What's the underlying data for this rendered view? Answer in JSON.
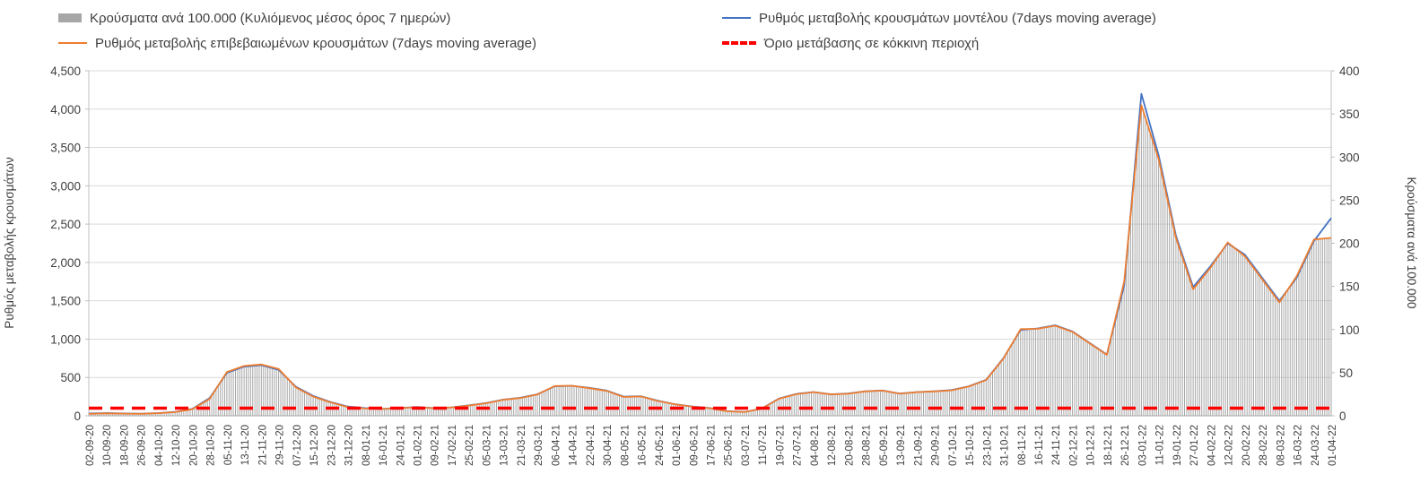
{
  "legend": {
    "items": [
      {
        "key": "cases",
        "type": "bar",
        "color": "#a6a6a6",
        "label": "Κρούσματα ανά 100.000 (Κυλιόμενος μέσος όρος 7 ημερών)"
      },
      {
        "key": "model",
        "type": "line",
        "color": "#4472c4",
        "label": "Ρυθμός μεταβολής κρουσμάτων μοντέλου (7days moving average)"
      },
      {
        "key": "confirmed",
        "type": "line",
        "color": "#ed7d31",
        "label": "Ρυθμός μεταβολής επιβεβαιωμένων κρουσμάτων (7days moving average)"
      },
      {
        "key": "threshold",
        "type": "threshold",
        "color": "#ff0000",
        "label": "Όριο μετάβασης σε κόκκινη περιοχή"
      }
    ]
  },
  "chart_data": {
    "type": "combo-bar-line",
    "grid": true,
    "legend_position": "top",
    "left_axis": {
      "label": "Ρυθμός μεταβολής κρουσμάτων",
      "min": 0,
      "max": 4500,
      "step": 500
    },
    "right_axis": {
      "label": "Κρούσματα ανά 100.000",
      "min": 0,
      "max": 400,
      "step": 50
    },
    "x": [
      "02-09-20",
      "10-09-20",
      "18-09-20",
      "26-09-20",
      "04-10-20",
      "12-10-20",
      "20-10-20",
      "28-10-20",
      "05-11-20",
      "13-11-20",
      "21-11-20",
      "29-11-20",
      "07-12-20",
      "15-12-20",
      "23-12-20",
      "31-12-20",
      "08-01-21",
      "16-01-21",
      "24-01-21",
      "01-02-21",
      "09-02-21",
      "17-02-21",
      "25-02-21",
      "05-03-21",
      "13-03-21",
      "21-03-21",
      "29-03-21",
      "06-04-21",
      "14-04-21",
      "22-04-21",
      "30-04-21",
      "08-05-21",
      "16-05-21",
      "24-05-21",
      "01-06-21",
      "09-06-21",
      "17-06-21",
      "25-06-21",
      "03-07-21",
      "11-07-21",
      "19-07-21",
      "27-07-21",
      "04-08-21",
      "12-08-21",
      "20-08-21",
      "28-08-21",
      "05-09-21",
      "13-09-21",
      "21-09-21",
      "29-09-21",
      "07-10-21",
      "15-10-21",
      "23-10-21",
      "31-10-21",
      "08-11-21",
      "16-11-21",
      "24-11-21",
      "02-12-21",
      "10-12-21",
      "18-12-21",
      "26-12-21",
      "03-01-22",
      "11-01-22",
      "19-01-22",
      "27-01-22",
      "04-02-22",
      "12-02-22",
      "20-02-22",
      "28-02-22",
      "08-03-22",
      "16-03-22",
      "24-03-22",
      "01-04-22"
    ],
    "series": [
      {
        "key": "cases",
        "name": "Κρούσματα ανά 100.000 (Κυλιόμενος μέσος όρος 7 ημερών)",
        "type": "bar",
        "axis": "right",
        "color": "#a6a6a6",
        "values": [
          2,
          3,
          3,
          2,
          3,
          4,
          8,
          20,
          51,
          58,
          60,
          54,
          33,
          22,
          16,
          10,
          8,
          8,
          9,
          10,
          9,
          10,
          12,
          14,
          19,
          21,
          25,
          35,
          35,
          32,
          29,
          22,
          22,
          17,
          13,
          11,
          9,
          5,
          4,
          8,
          20,
          25,
          27,
          25,
          26,
          28,
          29,
          26,
          27,
          28,
          30,
          34,
          41,
          66,
          100,
          101,
          104,
          97,
          84,
          71,
          156,
          360,
          298,
          206,
          147,
          172,
          201,
          185,
          158,
          132,
          162,
          204,
          206
        ]
      },
      {
        "key": "model",
        "name": "Ρυθμός μεταβολής κρουσμάτων μοντέλου (7days moving average)",
        "type": "line",
        "axis": "left",
        "color": "#4472c4",
        "values": [
          30,
          35,
          30,
          28,
          35,
          50,
          90,
          230,
          560,
          640,
          660,
          600,
          380,
          260,
          180,
          120,
          100,
          90,
          100,
          115,
          100,
          110,
          135,
          165,
          210,
          235,
          280,
          385,
          390,
          365,
          330,
          250,
          255,
          195,
          150,
          120,
          100,
          60,
          50,
          95,
          225,
          285,
          310,
          280,
          290,
          320,
          330,
          290,
          310,
          320,
          335,
          385,
          470,
          750,
          1120,
          1140,
          1180,
          1100,
          950,
          800,
          1700,
          4200,
          3400,
          2350,
          1680,
          1950,
          2250,
          2100,
          1800,
          1500,
          1800,
          2280,
          2580
        ]
      },
      {
        "key": "confirmed",
        "name": "Ρυθμός μεταβολής επιβεβαιωμένων κρουσμάτων (7days moving average)",
        "type": "line",
        "axis": "left",
        "color": "#ed7d31",
        "values": [
          25,
          32,
          28,
          26,
          33,
          48,
          85,
          220,
          570,
          650,
          670,
          610,
          370,
          250,
          175,
          115,
          95,
          88,
          98,
          112,
          98,
          108,
          132,
          162,
          208,
          232,
          278,
          388,
          392,
          360,
          325,
          245,
          252,
          192,
          148,
          118,
          98,
          58,
          48,
          92,
          222,
          282,
          308,
          278,
          288,
          318,
          328,
          288,
          308,
          318,
          332,
          382,
          465,
          745,
          1130,
          1135,
          1175,
          1095,
          945,
          795,
          1750,
          4050,
          3350,
          2320,
          1650,
          1930,
          2260,
          2080,
          1780,
          1480,
          1820,
          2300,
          2320
        ]
      },
      {
        "key": "threshold",
        "name": "Όριο μετάβασης σε κόκκινη περιοχή",
        "type": "threshold",
        "axis": "left",
        "color": "#ff0000",
        "value": 100
      }
    ]
  }
}
